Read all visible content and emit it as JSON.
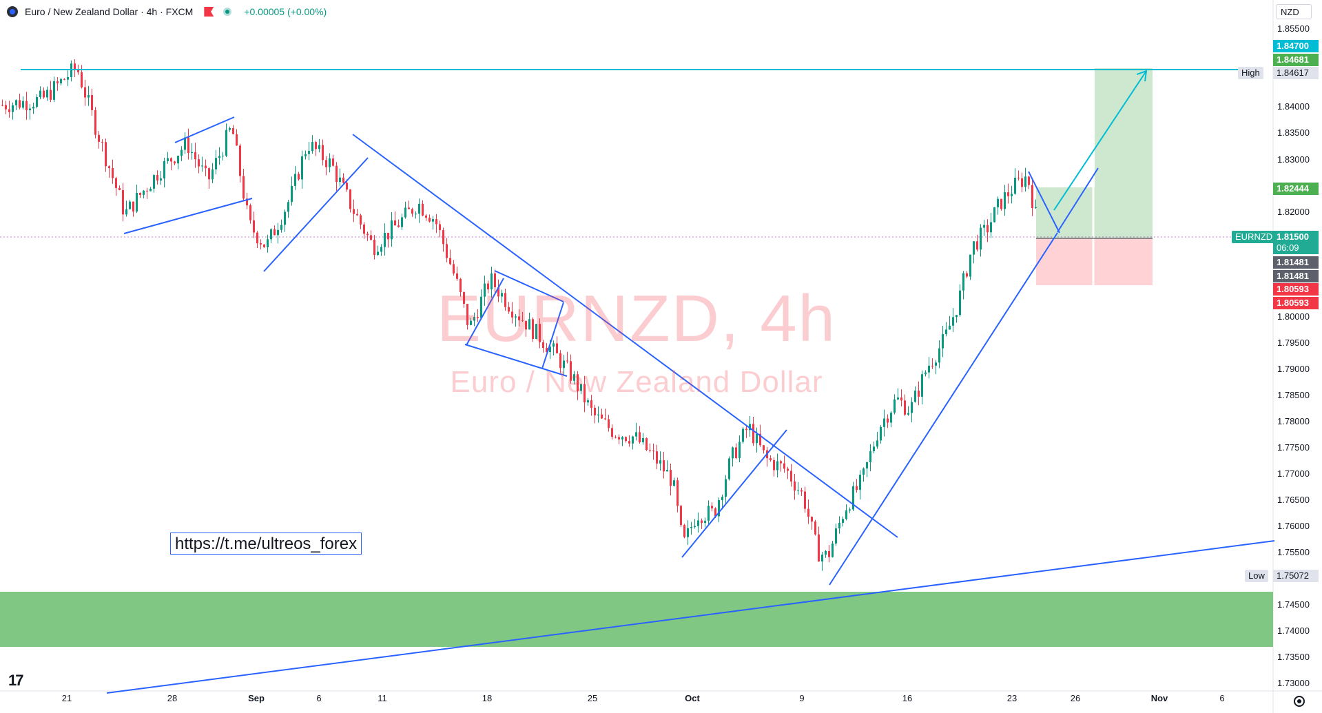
{
  "header": {
    "symbol_title": "Euro / New Zealand Dollar · 4h · FXCM",
    "change": "+0.00005 (+0.00%)"
  },
  "currency_select": "NZD",
  "watermark": {
    "symbol": "EURNZD, 4h",
    "description": "Euro / New Zealand Dollar"
  },
  "link_text": "https://t.me/ultreos_forex",
  "price_axis": {
    "ticks": [
      "1.85500",
      "1.84000",
      "1.83500",
      "1.83000",
      "1.82000",
      "1.80000",
      "1.79500",
      "1.79000",
      "1.78500",
      "1.78000",
      "1.77500",
      "1.77000",
      "1.76500",
      "1.76000",
      "1.75500",
      "1.74500",
      "1.74000",
      "1.73500",
      "1.73000"
    ],
    "tags": {
      "target_top": "1.84700",
      "target_green": "1.84681",
      "high_value": "1.84617",
      "high_label": "High",
      "profit_level": "1.82444",
      "symbol_tag": "EURNZD",
      "current_price": "1.81500",
      "countdown": "06:09",
      "gray_a": "1.81481",
      "gray_b": "1.81481",
      "stop_a": "1.80593",
      "stop_b": "1.80593",
      "low_label": "Low",
      "low_value": "1.75072"
    }
  },
  "time_axis": {
    "labels": [
      {
        "text": "21",
        "bold": false
      },
      {
        "text": "28",
        "bold": false
      },
      {
        "text": "Sep",
        "bold": true
      },
      {
        "text": "6",
        "bold": false
      },
      {
        "text": "11",
        "bold": false
      },
      {
        "text": "18",
        "bold": false
      },
      {
        "text": "25",
        "bold": false
      },
      {
        "text": "Oct",
        "bold": true
      },
      {
        "text": "9",
        "bold": false
      },
      {
        "text": "16",
        "bold": false
      },
      {
        "text": "23",
        "bold": false
      },
      {
        "text": "26",
        "bold": false
      },
      {
        "text": "Nov",
        "bold": true
      },
      {
        "text": "6",
        "bold": false
      }
    ]
  },
  "colors": {
    "bull": "#089981",
    "bear": "#f23645",
    "trendline": "#2962ff",
    "horizontal": "#00bcd4",
    "zone": "#81c784",
    "long_profit": "#c8e6c9",
    "long_stop": "#ffcdd2"
  },
  "chart_data": {
    "type": "candlestick",
    "symbol": "EURNZD",
    "interval": "4h",
    "price_range": [
      1.7294,
      1.8563
    ],
    "high": 1.84617,
    "low": 1.75072,
    "current_price": 1.815,
    "position": {
      "entry": 1.8148,
      "target": 1.8468,
      "stop": 1.8059,
      "first_target": 1.8244
    },
    "demand_zone": [
      1.7365,
      1.7472
    ],
    "horizontal_level": 1.8462
  }
}
